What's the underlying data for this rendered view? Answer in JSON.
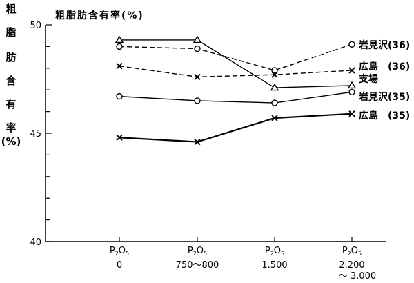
{
  "chart_data": {
    "type": "line",
    "title": "粗脂肪含有率(%)",
    "ylabel_chars": [
      "粗",
      "脂",
      "肪",
      "含",
      "有",
      "率",
      "(%)"
    ],
    "ylim": [
      40,
      50
    ],
    "yticks": [
      40,
      45,
      50
    ],
    "x_categories": [
      {
        "formula": "P",
        "sub1": "2",
        "mid": "O",
        "sub2": "5",
        "lines": [
          "0"
        ]
      },
      {
        "formula": "P",
        "sub1": "2",
        "mid": "O",
        "sub2": "5",
        "lines": [
          "750～800"
        ]
      },
      {
        "formula": "P",
        "sub1": "2",
        "mid": "O",
        "sub2": "5",
        "lines": [
          "1.500"
        ]
      },
      {
        "formula": "P",
        "sub1": "2",
        "mid": "O",
        "sub2": "5",
        "lines": [
          "2.200",
          "～ 3.000"
        ]
      }
    ],
    "series": [
      {
        "name": "岩見沢(36)",
        "marker": "circle",
        "dash": true,
        "color": "#000000",
        "values": [
          49.0,
          48.9,
          47.9,
          49.1
        ]
      },
      {
        "name": "広島　(36)",
        "marker": "x",
        "dash": true,
        "color": "#000000",
        "values": [
          48.1,
          47.6,
          47.7,
          47.9
        ]
      },
      {
        "name": "支場",
        "marker": "triangle",
        "dash": false,
        "color": "#000000",
        "values": [
          49.3,
          49.3,
          47.1,
          47.2
        ]
      },
      {
        "name": "岩見沢(35)",
        "marker": "circle",
        "dash": false,
        "color": "#000000",
        "values": [
          46.7,
          46.5,
          46.4,
          46.9
        ]
      },
      {
        "name": "広島　(35)",
        "marker": "x",
        "dash": false,
        "color": "#000000",
        "values": [
          44.8,
          44.6,
          45.7,
          45.9
        ]
      }
    ]
  }
}
